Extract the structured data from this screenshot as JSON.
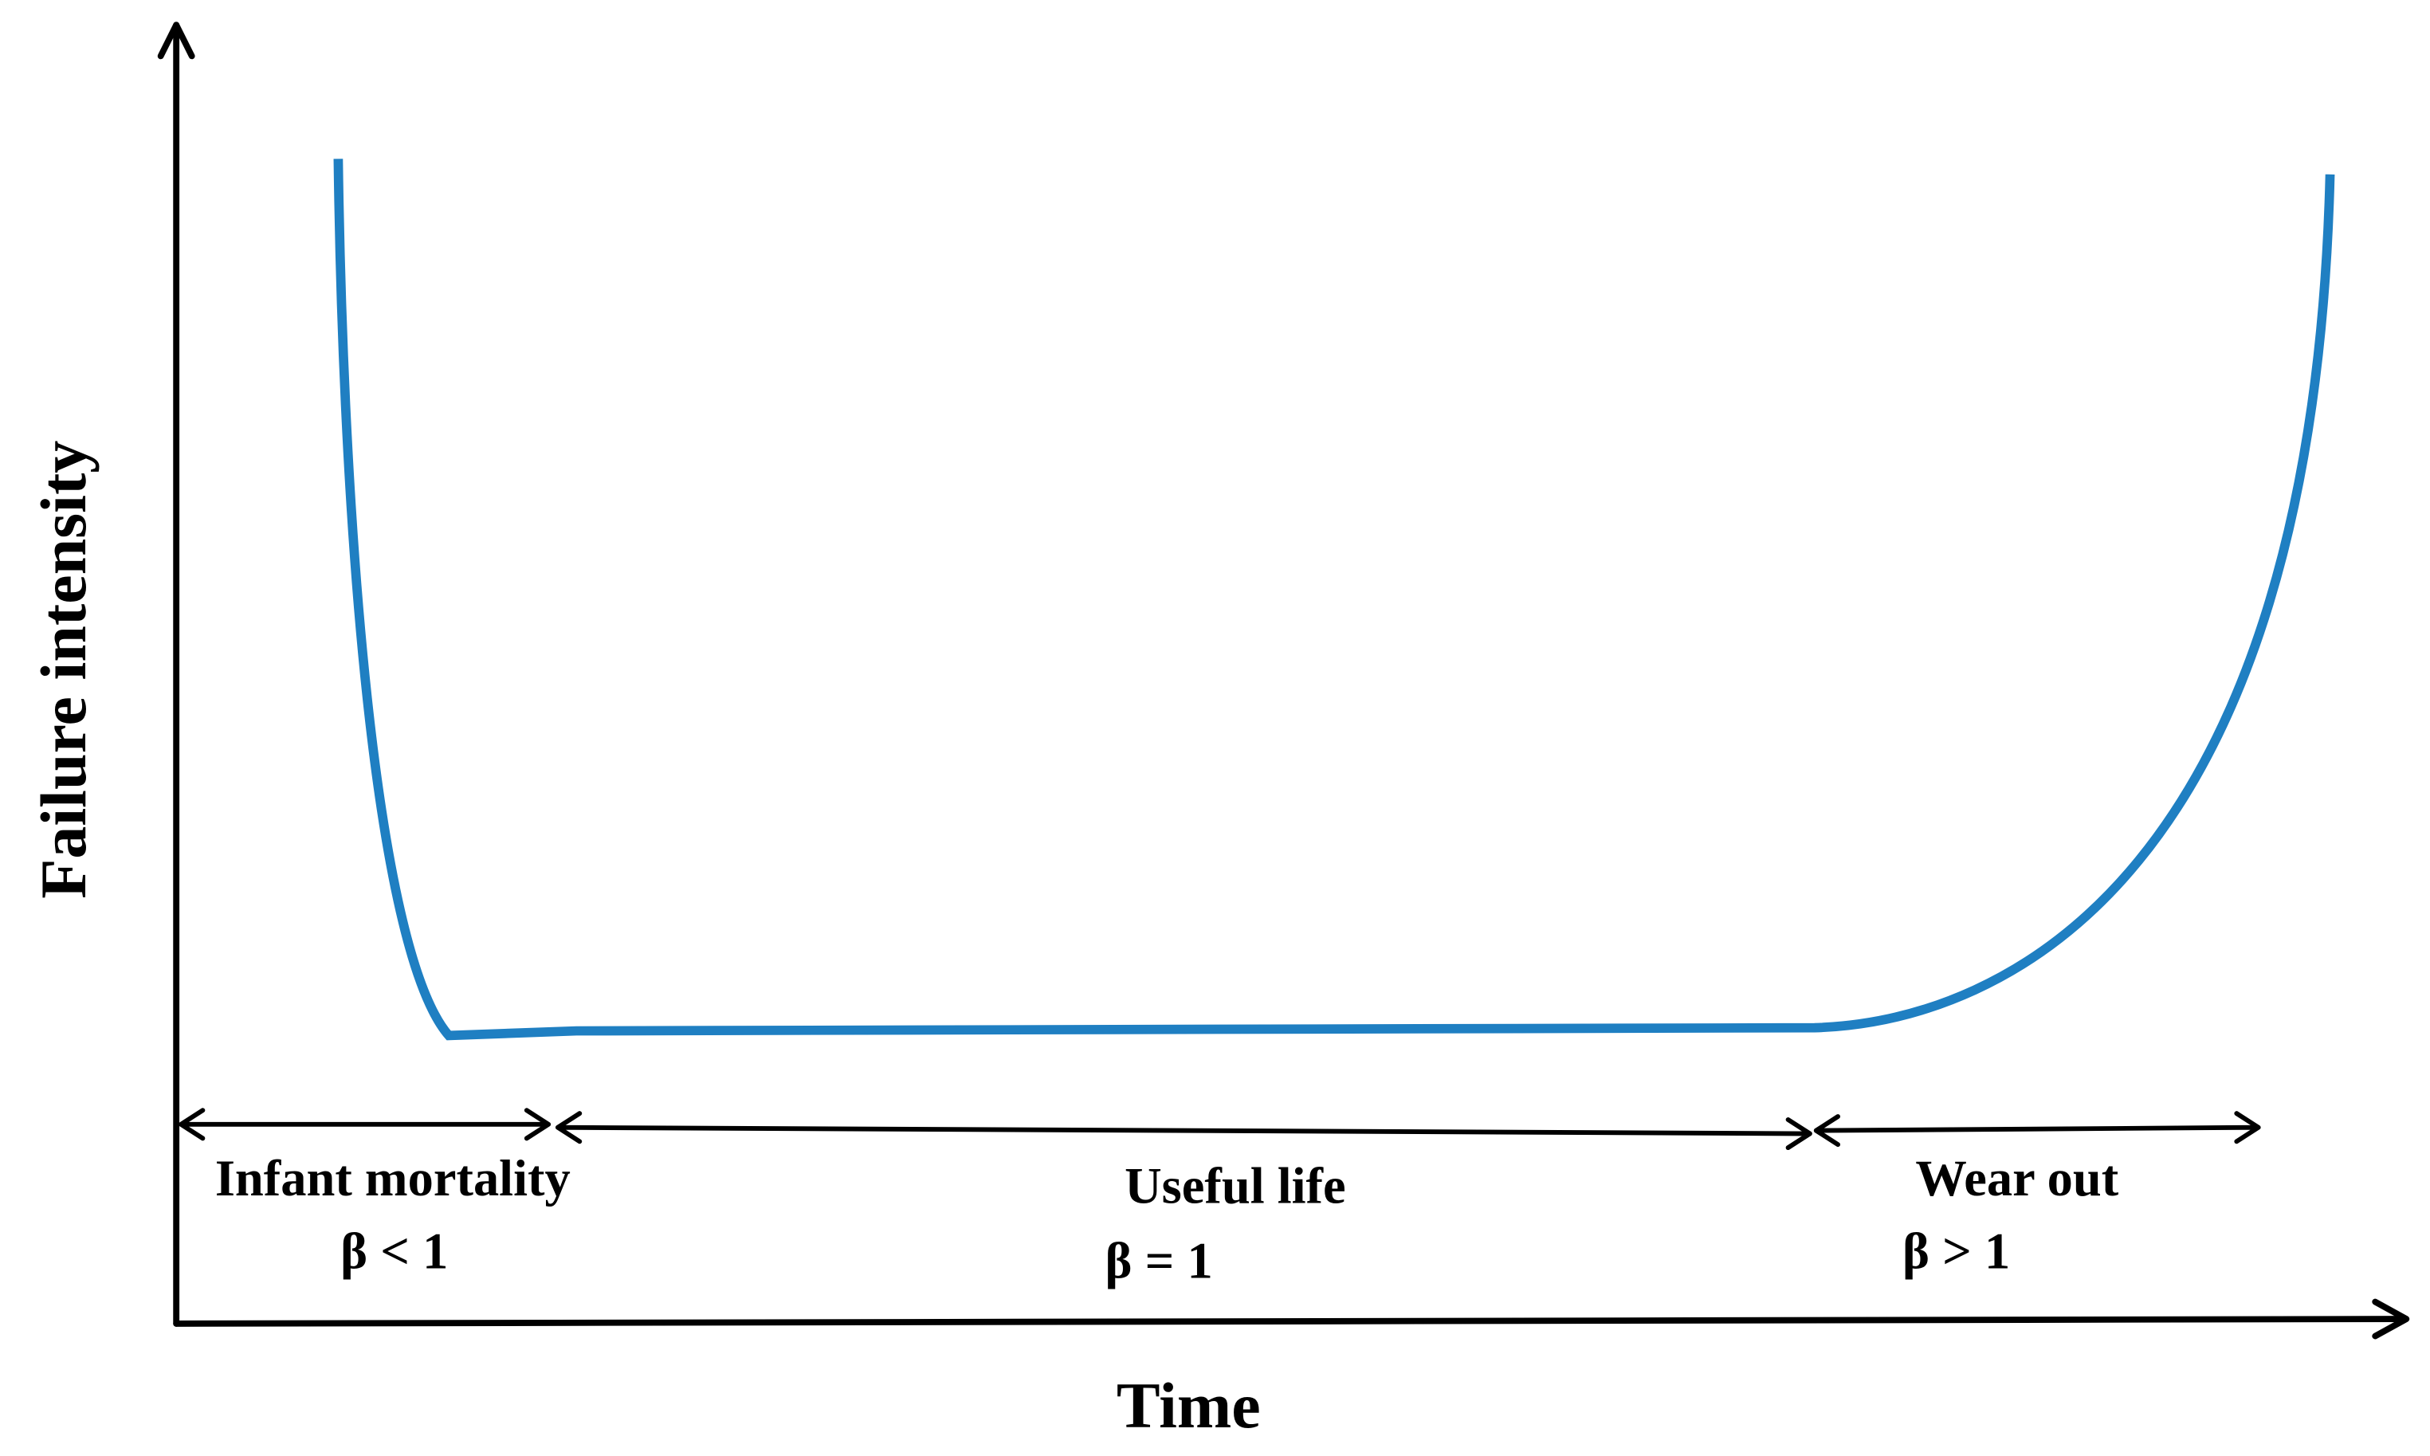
{
  "axes": {
    "y_label": "Failure intensity",
    "x_label": "Time"
  },
  "phases": [
    {
      "name": "Infant mortality",
      "beta": "β < 1"
    },
    {
      "name": "Useful life",
      "beta": "β = 1"
    },
    {
      "name": "Wear out",
      "beta": "β > 1"
    }
  ]
}
